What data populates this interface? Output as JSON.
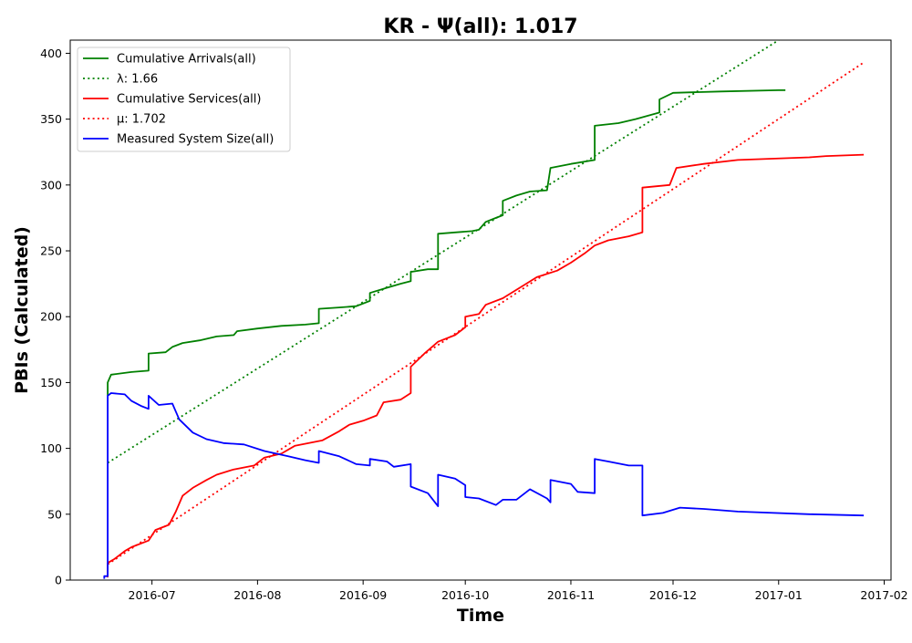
{
  "chart_data": {
    "type": "line",
    "title": "KR -  Ψ(all): 1.017",
    "xlabel": "Time",
    "ylabel": "PBIs (Calculated)",
    "xlim": [
      "2016-06-07",
      "2017-02-03"
    ],
    "ylim": [
      0,
      410
    ],
    "x_ticks": [
      "2016-07",
      "2016-08",
      "2016-09",
      "2016-10",
      "2016-11",
      "2016-12",
      "2017-01",
      "2017-02"
    ],
    "y_ticks": [
      0,
      50,
      100,
      150,
      200,
      250,
      300,
      350,
      400
    ],
    "grid": false,
    "legend_position": "top-left",
    "series": [
      {
        "name": "Cumulative Arrivals(all)",
        "color": "#008000",
        "style": "solid",
        "points": [
          [
            "2016-06-18",
            140
          ],
          [
            "2016-06-18",
            150
          ],
          [
            "2016-06-19",
            156
          ],
          [
            "2016-06-25",
            158
          ],
          [
            "2016-06-30",
            159
          ],
          [
            "2016-06-30",
            172
          ],
          [
            "2016-07-05",
            173
          ],
          [
            "2016-07-07",
            177
          ],
          [
            "2016-07-10",
            180
          ],
          [
            "2016-07-15",
            182
          ],
          [
            "2016-07-20",
            185
          ],
          [
            "2016-07-25",
            186
          ],
          [
            "2016-07-26",
            189
          ],
          [
            "2016-08-01",
            191
          ],
          [
            "2016-08-08",
            193
          ],
          [
            "2016-08-15",
            194
          ],
          [
            "2016-08-19",
            195
          ],
          [
            "2016-08-19",
            206
          ],
          [
            "2016-08-25",
            207
          ],
          [
            "2016-08-30",
            208
          ],
          [
            "2016-09-03",
            212
          ],
          [
            "2016-09-03",
            218
          ],
          [
            "2016-09-08",
            222
          ],
          [
            "2016-09-12",
            225
          ],
          [
            "2016-09-15",
            227
          ],
          [
            "2016-09-15",
            234
          ],
          [
            "2016-09-20",
            236
          ],
          [
            "2016-09-23",
            236
          ],
          [
            "2016-09-23",
            263
          ],
          [
            "2016-09-28",
            264
          ],
          [
            "2016-10-03",
            265
          ],
          [
            "2016-10-05",
            266
          ],
          [
            "2016-10-07",
            272
          ],
          [
            "2016-10-10",
            275
          ],
          [
            "2016-10-12",
            277
          ],
          [
            "2016-10-12",
            288
          ],
          [
            "2016-10-16",
            292
          ],
          [
            "2016-10-20",
            295
          ],
          [
            "2016-10-25",
            296
          ],
          [
            "2016-10-26",
            313
          ],
          [
            "2016-11-01",
            316
          ],
          [
            "2016-11-08",
            319
          ],
          [
            "2016-11-08",
            345
          ],
          [
            "2016-11-15",
            347
          ],
          [
            "2016-11-20",
            350
          ],
          [
            "2016-11-27",
            355
          ],
          [
            "2016-11-27",
            365
          ],
          [
            "2016-12-01",
            370
          ],
          [
            "2016-12-15",
            371
          ],
          [
            "2017-01-01",
            372
          ],
          [
            "2017-01-03",
            372
          ]
        ]
      },
      {
        "name": "λ: 1.66",
        "color": "#008000",
        "style": "dotted",
        "points": [
          [
            "2016-06-18",
            89
          ],
          [
            "2017-01-01",
            410
          ]
        ]
      },
      {
        "name": "Cumulative Services(all)",
        "color": "#ff0000",
        "style": "solid",
        "points": [
          [
            "2016-06-18",
            2
          ],
          [
            "2016-06-18",
            13
          ],
          [
            "2016-06-20",
            16
          ],
          [
            "2016-06-23",
            22
          ],
          [
            "2016-06-25",
            25
          ],
          [
            "2016-06-30",
            30
          ],
          [
            "2016-07-02",
            38
          ],
          [
            "2016-07-06",
            42
          ],
          [
            "2016-07-08",
            52
          ],
          [
            "2016-07-10",
            64
          ],
          [
            "2016-07-13",
            70
          ],
          [
            "2016-07-17",
            76
          ],
          [
            "2016-07-20",
            80
          ],
          [
            "2016-07-25",
            84
          ],
          [
            "2016-07-31",
            87
          ],
          [
            "2016-08-03",
            93
          ],
          [
            "2016-08-08",
            96
          ],
          [
            "2016-08-12",
            102
          ],
          [
            "2016-08-20",
            106
          ],
          [
            "2016-08-25",
            113
          ],
          [
            "2016-08-28",
            118
          ],
          [
            "2016-09-01",
            121
          ],
          [
            "2016-09-05",
            125
          ],
          [
            "2016-09-07",
            135
          ],
          [
            "2016-09-12",
            137
          ],
          [
            "2016-09-15",
            142
          ],
          [
            "2016-09-15",
            162
          ],
          [
            "2016-09-19",
            172
          ],
          [
            "2016-09-23",
            181
          ],
          [
            "2016-09-28",
            186
          ],
          [
            "2016-10-01",
            192
          ],
          [
            "2016-10-01",
            200
          ],
          [
            "2016-10-05",
            202
          ],
          [
            "2016-10-07",
            209
          ],
          [
            "2016-10-12",
            214
          ],
          [
            "2016-10-17",
            222
          ],
          [
            "2016-10-22",
            230
          ],
          [
            "2016-10-28",
            235
          ],
          [
            "2016-11-01",
            241
          ],
          [
            "2016-11-05",
            248
          ],
          [
            "2016-11-08",
            254
          ],
          [
            "2016-11-12",
            258
          ],
          [
            "2016-11-18",
            261
          ],
          [
            "2016-11-22",
            264
          ],
          [
            "2016-11-22",
            298
          ],
          [
            "2016-11-30",
            300
          ],
          [
            "2016-12-02",
            313
          ],
          [
            "2016-12-10",
            316
          ],
          [
            "2016-12-20",
            319
          ],
          [
            "2017-01-10",
            321
          ],
          [
            "2017-01-15",
            322
          ],
          [
            "2017-01-26",
            323
          ]
        ]
      },
      {
        "name": "μ: 1.702",
        "color": "#ff0000",
        "style": "dotted",
        "points": [
          [
            "2016-06-18",
            12
          ],
          [
            "2017-01-26",
            393
          ]
        ]
      },
      {
        "name": "Measured System Size(all)",
        "color": "#0000ff",
        "style": "solid",
        "points": [
          [
            "2016-06-17",
            1
          ],
          [
            "2016-06-17",
            3
          ],
          [
            "2016-06-18",
            3
          ],
          [
            "2016-06-18",
            140
          ],
          [
            "2016-06-19",
            142
          ],
          [
            "2016-06-23",
            141
          ],
          [
            "2016-06-25",
            136
          ],
          [
            "2016-06-28",
            132
          ],
          [
            "2016-06-30",
            130
          ],
          [
            "2016-06-30",
            140
          ],
          [
            "2016-07-03",
            133
          ],
          [
            "2016-07-07",
            134
          ],
          [
            "2016-07-09",
            122
          ],
          [
            "2016-07-13",
            112
          ],
          [
            "2016-07-17",
            107
          ],
          [
            "2016-07-22",
            104
          ],
          [
            "2016-07-28",
            103
          ],
          [
            "2016-08-03",
            98
          ],
          [
            "2016-08-10",
            94
          ],
          [
            "2016-08-15",
            91
          ],
          [
            "2016-08-19",
            89
          ],
          [
            "2016-08-19",
            98
          ],
          [
            "2016-08-25",
            94
          ],
          [
            "2016-08-30",
            88
          ],
          [
            "2016-09-03",
            87
          ],
          [
            "2016-09-03",
            92
          ],
          [
            "2016-09-08",
            90
          ],
          [
            "2016-09-10",
            86
          ],
          [
            "2016-09-15",
            88
          ],
          [
            "2016-09-15",
            71
          ],
          [
            "2016-09-20",
            66
          ],
          [
            "2016-09-23",
            56
          ],
          [
            "2016-09-23",
            80
          ],
          [
            "2016-09-28",
            77
          ],
          [
            "2016-10-01",
            72
          ],
          [
            "2016-10-01",
            63
          ],
          [
            "2016-10-05",
            62
          ],
          [
            "2016-10-10",
            57
          ],
          [
            "2016-10-12",
            61
          ],
          [
            "2016-10-16",
            61
          ],
          [
            "2016-10-20",
            69
          ],
          [
            "2016-10-25",
            62
          ],
          [
            "2016-10-26",
            59
          ],
          [
            "2016-10-26",
            76
          ],
          [
            "2016-11-01",
            73
          ],
          [
            "2016-11-03",
            67
          ],
          [
            "2016-11-08",
            66
          ],
          [
            "2016-11-08",
            92
          ],
          [
            "2016-11-12",
            90
          ],
          [
            "2016-11-18",
            87
          ],
          [
            "2016-11-22",
            87
          ],
          [
            "2016-11-22",
            49
          ],
          [
            "2016-11-28",
            51
          ],
          [
            "2016-12-03",
            55
          ],
          [
            "2016-12-10",
            54
          ],
          [
            "2016-12-20",
            52
          ],
          [
            "2017-01-10",
            50
          ],
          [
            "2017-01-26",
            49
          ]
        ]
      }
    ]
  }
}
